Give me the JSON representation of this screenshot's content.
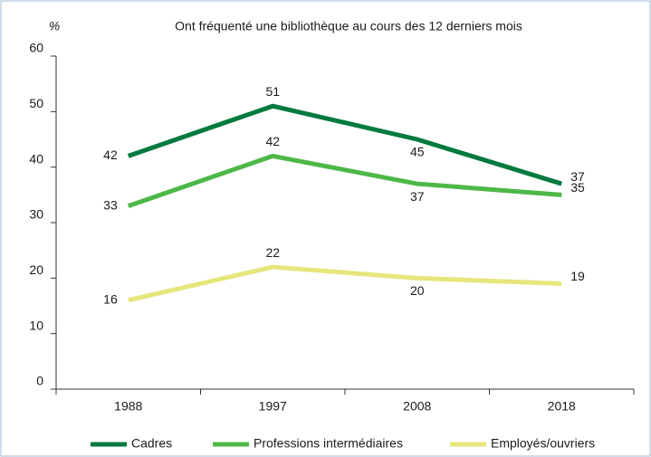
{
  "chart_data": {
    "type": "line",
    "title": "Ont fréquenté une bibliothèque au cours des 12 derniers mois",
    "y_label": "%",
    "categories": [
      "1988",
      "1997",
      "2008",
      "2018"
    ],
    "series": [
      {
        "name": "Cadres",
        "color": "#007a3d",
        "values": [
          42,
          51,
          45,
          37
        ]
      },
      {
        "name": "Professions intermédiaires",
        "color": "#4db848",
        "values": [
          33,
          42,
          37,
          35
        ]
      },
      {
        "name": "Employés/ouvriers",
        "color": "#e6e67c",
        "values": [
          16,
          22,
          20,
          19
        ]
      }
    ],
    "ylim": [
      0,
      60
    ],
    "yticks": [
      0,
      10,
      20,
      30,
      40,
      50,
      60
    ],
    "grid": false
  }
}
